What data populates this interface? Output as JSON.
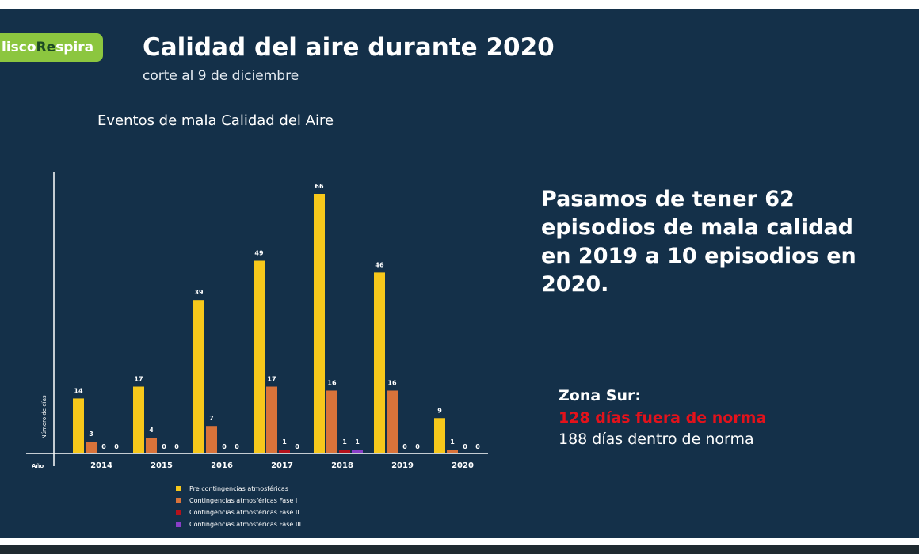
{
  "logo": {
    "part1": "lisco ",
    "part2": "Re",
    "part3": "spira"
  },
  "header": {
    "title": "Calidad del aire durante 2020",
    "subtitle": "corte al 9 de diciembre"
  },
  "headline": "Pasamos de tener 62 episodios de mala calidad en 2019 a 10 episodios en 2020.",
  "zona": {
    "title": "Zona Sur:",
    "fuera": "128 días fuera de norma",
    "dentro": "188 días dentro de norma"
  },
  "chart_data": {
    "type": "bar",
    "title": "Eventos de mala Calidad del Aire",
    "xlabel": "Año",
    "ylabel": "Número de días",
    "categories": [
      "2014",
      "2015",
      "2016",
      "2017",
      "2018",
      "2019",
      "2020"
    ],
    "ylim": [
      0,
      66
    ],
    "grid": false,
    "legend_position": "bottom",
    "series": [
      {
        "name": "Pre contingencias atmosféricas",
        "color": "#f7c81b",
        "values": [
          14,
          17,
          39,
          49,
          66,
          46,
          9
        ]
      },
      {
        "name": "Contingencias atmosféricas Fase I",
        "color": "#d9733a",
        "values": [
          3,
          4,
          7,
          17,
          16,
          16,
          1
        ]
      },
      {
        "name": "Contingencias atmosféricas Fase II",
        "color": "#b5121b",
        "values": [
          0,
          0,
          0,
          1,
          1,
          0,
          0
        ]
      },
      {
        "name": "Contingencias atmosféricas Fase III",
        "color": "#8a3ec9",
        "values": [
          0,
          0,
          0,
          0,
          1,
          0,
          0
        ]
      }
    ]
  }
}
